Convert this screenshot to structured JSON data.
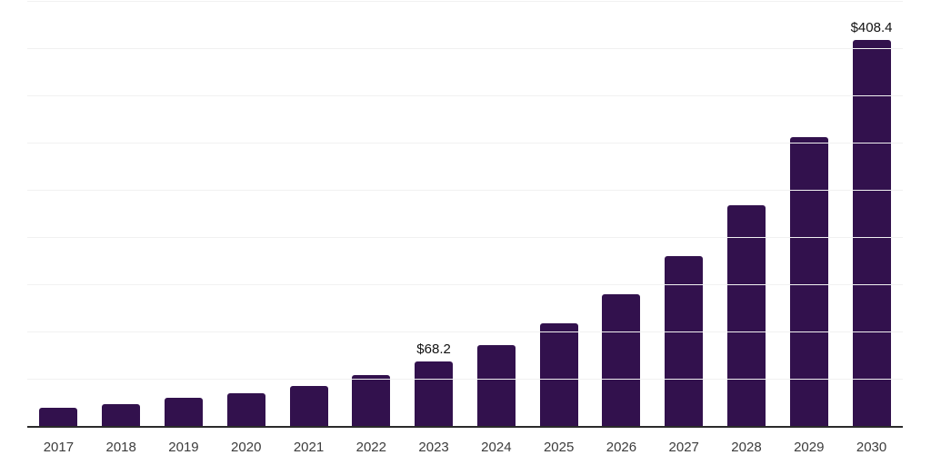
{
  "chart_data": {
    "type": "bar",
    "title": "",
    "xlabel": "",
    "ylabel": "",
    "categories": [
      "2017",
      "2018",
      "2019",
      "2020",
      "2021",
      "2022",
      "2023",
      "2024",
      "2025",
      "2026",
      "2027",
      "2028",
      "2029",
      "2030"
    ],
    "values": [
      19.5,
      23.2,
      29.6,
      34.9,
      42.8,
      54.1,
      68.2,
      85.2,
      108.3,
      139.1,
      179.4,
      233.5,
      305.9,
      408.4
    ],
    "bar_labels": [
      "",
      "",
      "",
      "",
      "",
      "",
      "$68.2",
      "",
      "",
      "",
      "",
      "",
      "",
      "$408.4"
    ],
    "ylim": [
      0,
      450
    ],
    "gridline_interval": 50,
    "grid": true,
    "legend": false,
    "y_axis_ticks_visible": false,
    "bar_color": "#32114d",
    "grid_color": "#f1f1f1",
    "axis_line_color": "#2b2b2b",
    "tick_label_color": "#3c3c3c",
    "data_label_color": "#111111"
  }
}
